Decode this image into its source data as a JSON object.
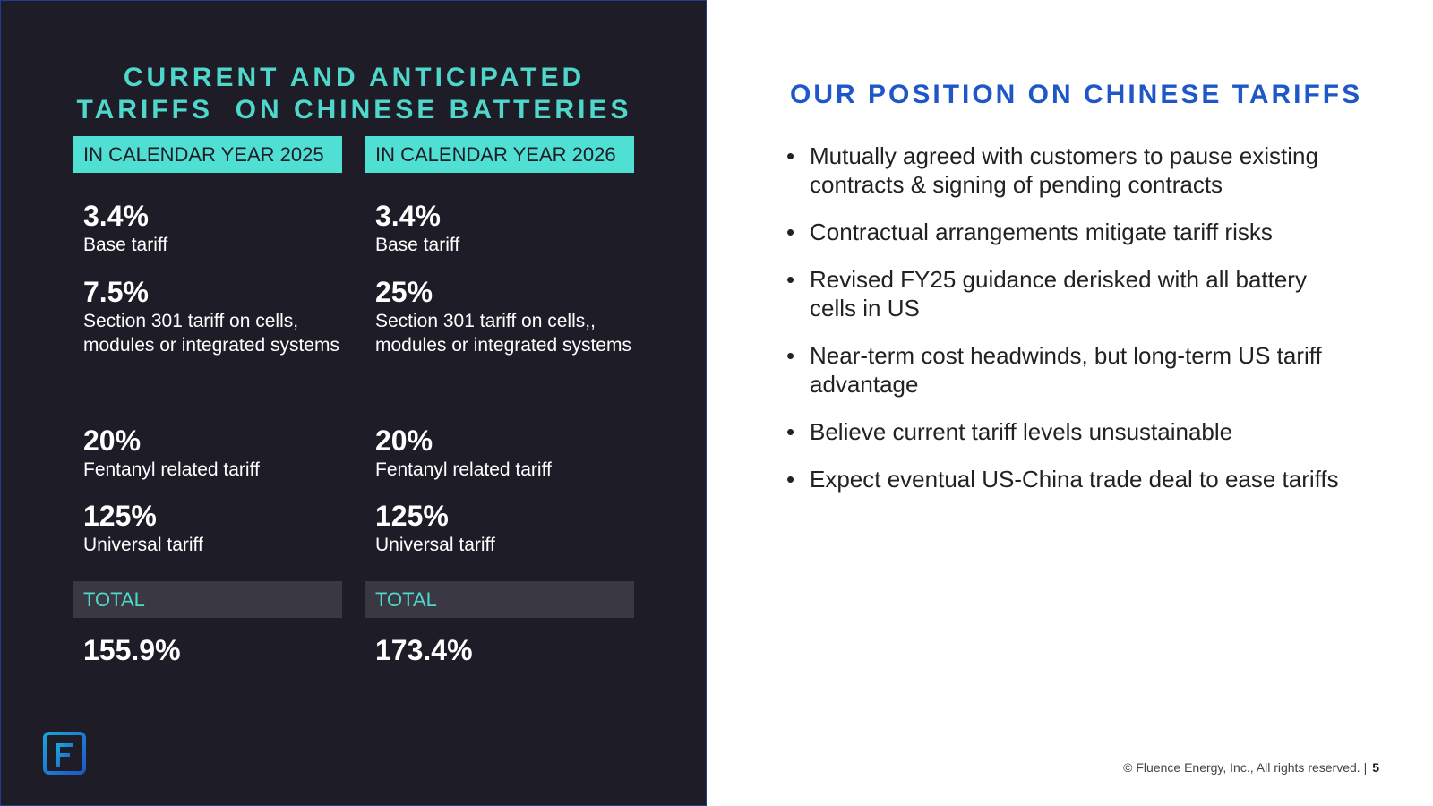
{
  "left": {
    "title_line1": "CURRENT AND ANTICIPATED",
    "title_line2": "TARIFFS  ON CHINESE BATTERIES",
    "columns": [
      {
        "header": "IN CALENDAR YEAR 2025",
        "items": [
          {
            "pct": "3.4%",
            "desc": "Base tariff"
          },
          {
            "pct": "7.5%",
            "desc": "Section 301 tariff on cells, modules or integrated systems"
          },
          {
            "pct": "20%",
            "desc": "Fentanyl related tariff"
          },
          {
            "pct": "125%",
            "desc": "Universal tariff"
          }
        ],
        "total_label": "TOTAL",
        "total_value": "155.9%"
      },
      {
        "header": "IN CALENDAR YEAR 2026",
        "items": [
          {
            "pct": "3.4%",
            "desc": "Base tariff"
          },
          {
            "pct": "25%",
            "desc": "Section 301 tariff on cells,, modules or integrated systems"
          },
          {
            "pct": "20%",
            "desc": "Fentanyl related tariff"
          },
          {
            "pct": "125%",
            "desc": "Universal tariff"
          }
        ],
        "total_label": "TOTAL",
        "total_value": "173.4%"
      }
    ],
    "logo_icon": "fluence-logo-icon"
  },
  "right": {
    "title": "OUR POSITION ON CHINESE TARIFFS",
    "bullets": [
      "Mutually agreed with customers to pause existing contracts & signing of pending contracts",
      "Contractual arrangements mitigate tariff risks",
      "Revised FY25 guidance derisked with all battery cells in US",
      "Near-term cost headwinds, but long-term US tariff advantage",
      "Believe current tariff levels unsustainable",
      "Expect eventual US-China trade deal to ease tariffs"
    ]
  },
  "footer": {
    "copyright": "© Fluence Energy, Inc., All rights reserved. |",
    "page_number": "5"
  },
  "colors": {
    "panel_bg": "#1e1c26",
    "accent_teal": "#4fdfd3",
    "title_blue": "#1f57c8",
    "total_bar": "#3a3843"
  }
}
